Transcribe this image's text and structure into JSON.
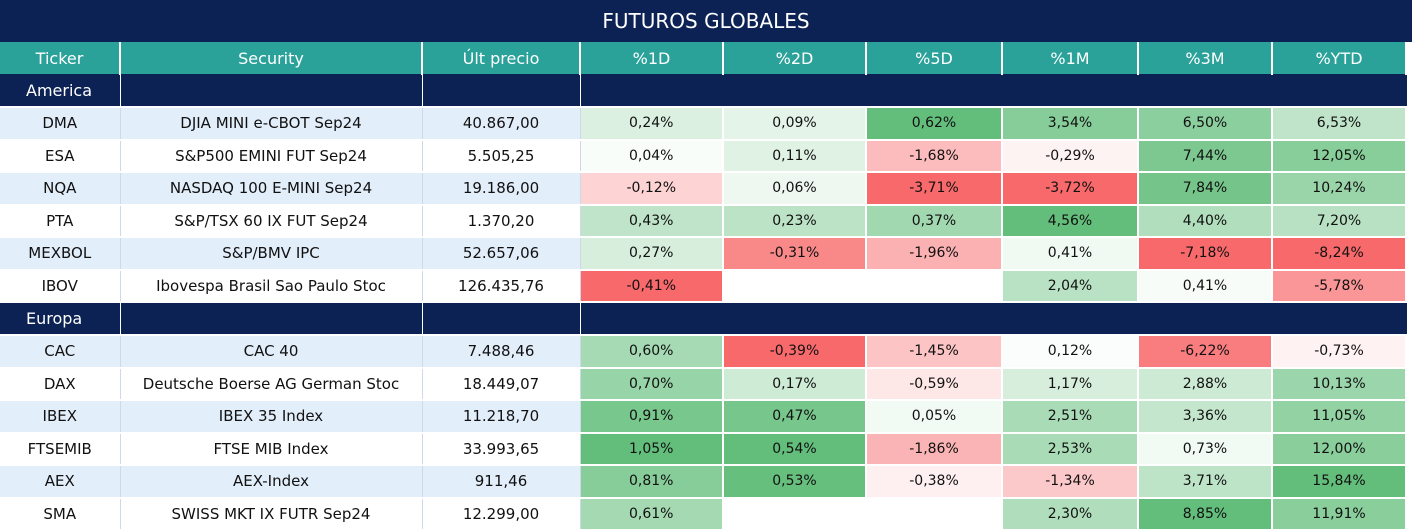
{
  "title": "FUTUROS GLOBALES",
  "columns": [
    "Ticker",
    "Security",
    "Últ precio",
    "%1D",
    "%2D",
    "%5D",
    "%1M",
    "%3M",
    "%YTD"
  ],
  "sections": [
    {
      "name": "America",
      "rows": [
        {
          "ticker": "DMA",
          "security": "DJIA MINI e-CBOT  Sep24",
          "price": "40.867,00",
          "vals": [
            "0,24%",
            "0,09%",
            "0,62%",
            "3,54%",
            "6,50%",
            "6,53%"
          ]
        },
        {
          "ticker": "ESA",
          "security": "S&P500 EMINI FUT  Sep24",
          "price": "5.505,25",
          "vals": [
            "0,04%",
            "0,11%",
            "-1,68%",
            "-0,29%",
            "7,44%",
            "12,05%"
          ]
        },
        {
          "ticker": "NQA",
          "security": "NASDAQ 100 E-MINI Sep24",
          "price": "19.186,00",
          "vals": [
            "-0,12%",
            "0,06%",
            "-3,71%",
            "-3,72%",
            "7,84%",
            "10,24%"
          ]
        },
        {
          "ticker": "PTA",
          "security": "S&P/TSX 60 IX FUT Sep24",
          "price": "1.370,20",
          "vals": [
            "0,43%",
            "0,23%",
            "0,37%",
            "4,56%",
            "4,40%",
            "7,20%"
          ]
        },
        {
          "ticker": "MEXBOL",
          "security": "S&P/BMV IPC",
          "price": "52.657,06",
          "vals": [
            "0,27%",
            "-0,31%",
            "-1,96%",
            "0,41%",
            "-7,18%",
            "-8,24%"
          ]
        },
        {
          "ticker": "IBOV",
          "security": "Ibovespa Brasil Sao Paulo Stoc",
          "price": "126.435,76",
          "vals": [
            "-0,41%",
            "",
            "",
            "2,04%",
            "0,41%",
            "-5,78%"
          ]
        }
      ]
    },
    {
      "name": "Europa",
      "rows": [
        {
          "ticker": "CAC",
          "security": "CAC 40",
          "price": "7.488,46",
          "vals": [
            "0,60%",
            "-0,39%",
            "-1,45%",
            "0,12%",
            "-6,22%",
            "-0,73%"
          ]
        },
        {
          "ticker": "DAX",
          "security": "Deutsche Boerse AG German Stoc",
          "price": "18.449,07",
          "vals": [
            "0,70%",
            "0,17%",
            "-0,59%",
            "1,17%",
            "2,88%",
            "10,13%"
          ]
        },
        {
          "ticker": "IBEX",
          "security": "IBEX 35 Index",
          "price": "11.218,70",
          "vals": [
            "0,91%",
            "0,47%",
            "0,05%",
            "2,51%",
            "3,36%",
            "11,05%"
          ]
        },
        {
          "ticker": "FTSEMIB",
          "security": "FTSE MIB Index",
          "price": "33.993,65",
          "vals": [
            "1,05%",
            "0,54%",
            "-1,86%",
            "2,53%",
            "0,73%",
            "12,00%"
          ]
        },
        {
          "ticker": "AEX",
          "security": "AEX-Index",
          "price": "911,46",
          "vals": [
            "0,81%",
            "0,53%",
            "-0,38%",
            "-1,34%",
            "3,71%",
            "15,84%"
          ]
        },
        {
          "ticker": "SMA",
          "security": "SWISS MKT IX FUTR Sep24",
          "price": "12.299,00",
          "vals": [
            "0,61%",
            "",
            "",
            "2,30%",
            "8,85%",
            "11,91%"
          ]
        }
      ]
    }
  ],
  "colors": {
    "title_bg": "#0c2254",
    "header_bg": "#2aa199",
    "positive": "#63be7b",
    "negative": "#f8696b",
    "neutral": "#ffffff",
    "alt_row": "#e3eefb"
  }
}
